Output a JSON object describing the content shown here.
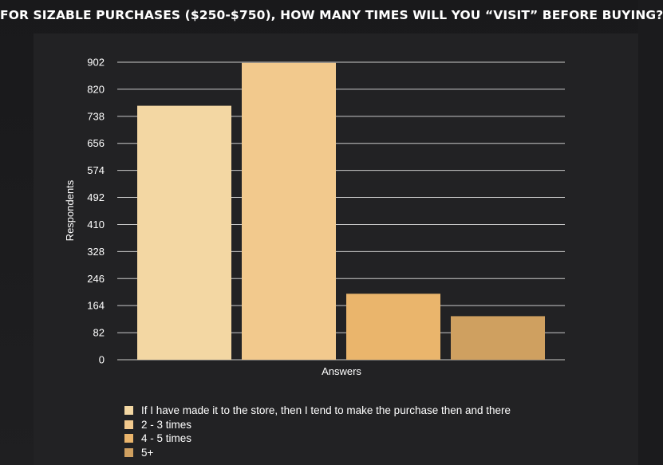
{
  "chart_data": {
    "type": "bar",
    "title": "FOR SIZABLE PURCHASES ($250-$750), HOW MANY TIMES WILL YOU “VISIT” BEFORE BUYING?",
    "xlabel": "Answers",
    "ylabel": "Respondents",
    "ylim": [
      0,
      902
    ],
    "yticks": [
      "0",
      "82",
      "164",
      "246",
      "328",
      "410",
      "492",
      "574",
      "656",
      "738",
      "820",
      "902"
    ],
    "grid": true,
    "legend_position": "bottom",
    "series": [
      {
        "name": "If I have made it to the store, then I tend to make the purchase then and there",
        "value": 770,
        "color": "#f3d7a3"
      },
      {
        "name": "2 - 3 times",
        "value": 900,
        "color": "#f2c98d"
      },
      {
        "name": "4 - 5 times",
        "value": 200,
        "color": "#eab56c"
      },
      {
        "name": "5+",
        "value": 132,
        "color": "#cfa060"
      }
    ]
  }
}
